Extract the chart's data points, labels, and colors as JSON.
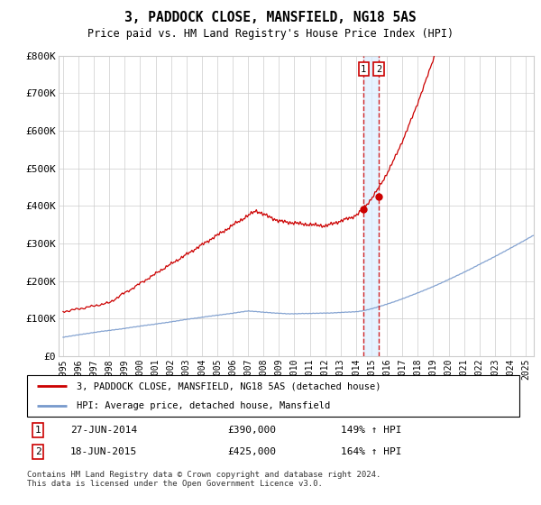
{
  "title": "3, PADDOCK CLOSE, MANSFIELD, NG18 5AS",
  "subtitle": "Price paid vs. HM Land Registry's House Price Index (HPI)",
  "legend_line1": "3, PADDOCK CLOSE, MANSFIELD, NG18 5AS (detached house)",
  "legend_line2": "HPI: Average price, detached house, Mansfield",
  "sale1_label": "1",
  "sale1_date": "27-JUN-2014",
  "sale1_price": "£390,000",
  "sale1_hpi": "149% ↑ HPI",
  "sale2_label": "2",
  "sale2_date": "18-JUN-2015",
  "sale2_price": "£425,000",
  "sale2_hpi": "164% ↑ HPI",
  "footer": "Contains HM Land Registry data © Crown copyright and database right 2024.\nThis data is licensed under the Open Government Licence v3.0.",
  "red_color": "#cc0000",
  "blue_color": "#7799cc",
  "blue_highlight": "#ddeeff",
  "grid_color": "#cccccc",
  "ylim": [
    0,
    800000
  ],
  "yticks": [
    0,
    100000,
    200000,
    300000,
    400000,
    500000,
    600000,
    700000,
    800000
  ],
  "ytick_labels": [
    "£0",
    "£100K",
    "£200K",
    "£300K",
    "£400K",
    "£500K",
    "£600K",
    "£700K",
    "£800K"
  ],
  "sale1_year": 2014.49,
  "sale2_year": 2015.46,
  "sale1_value": 390000,
  "sale2_value": 425000,
  "xmin": 1994.7,
  "xmax": 2025.5
}
